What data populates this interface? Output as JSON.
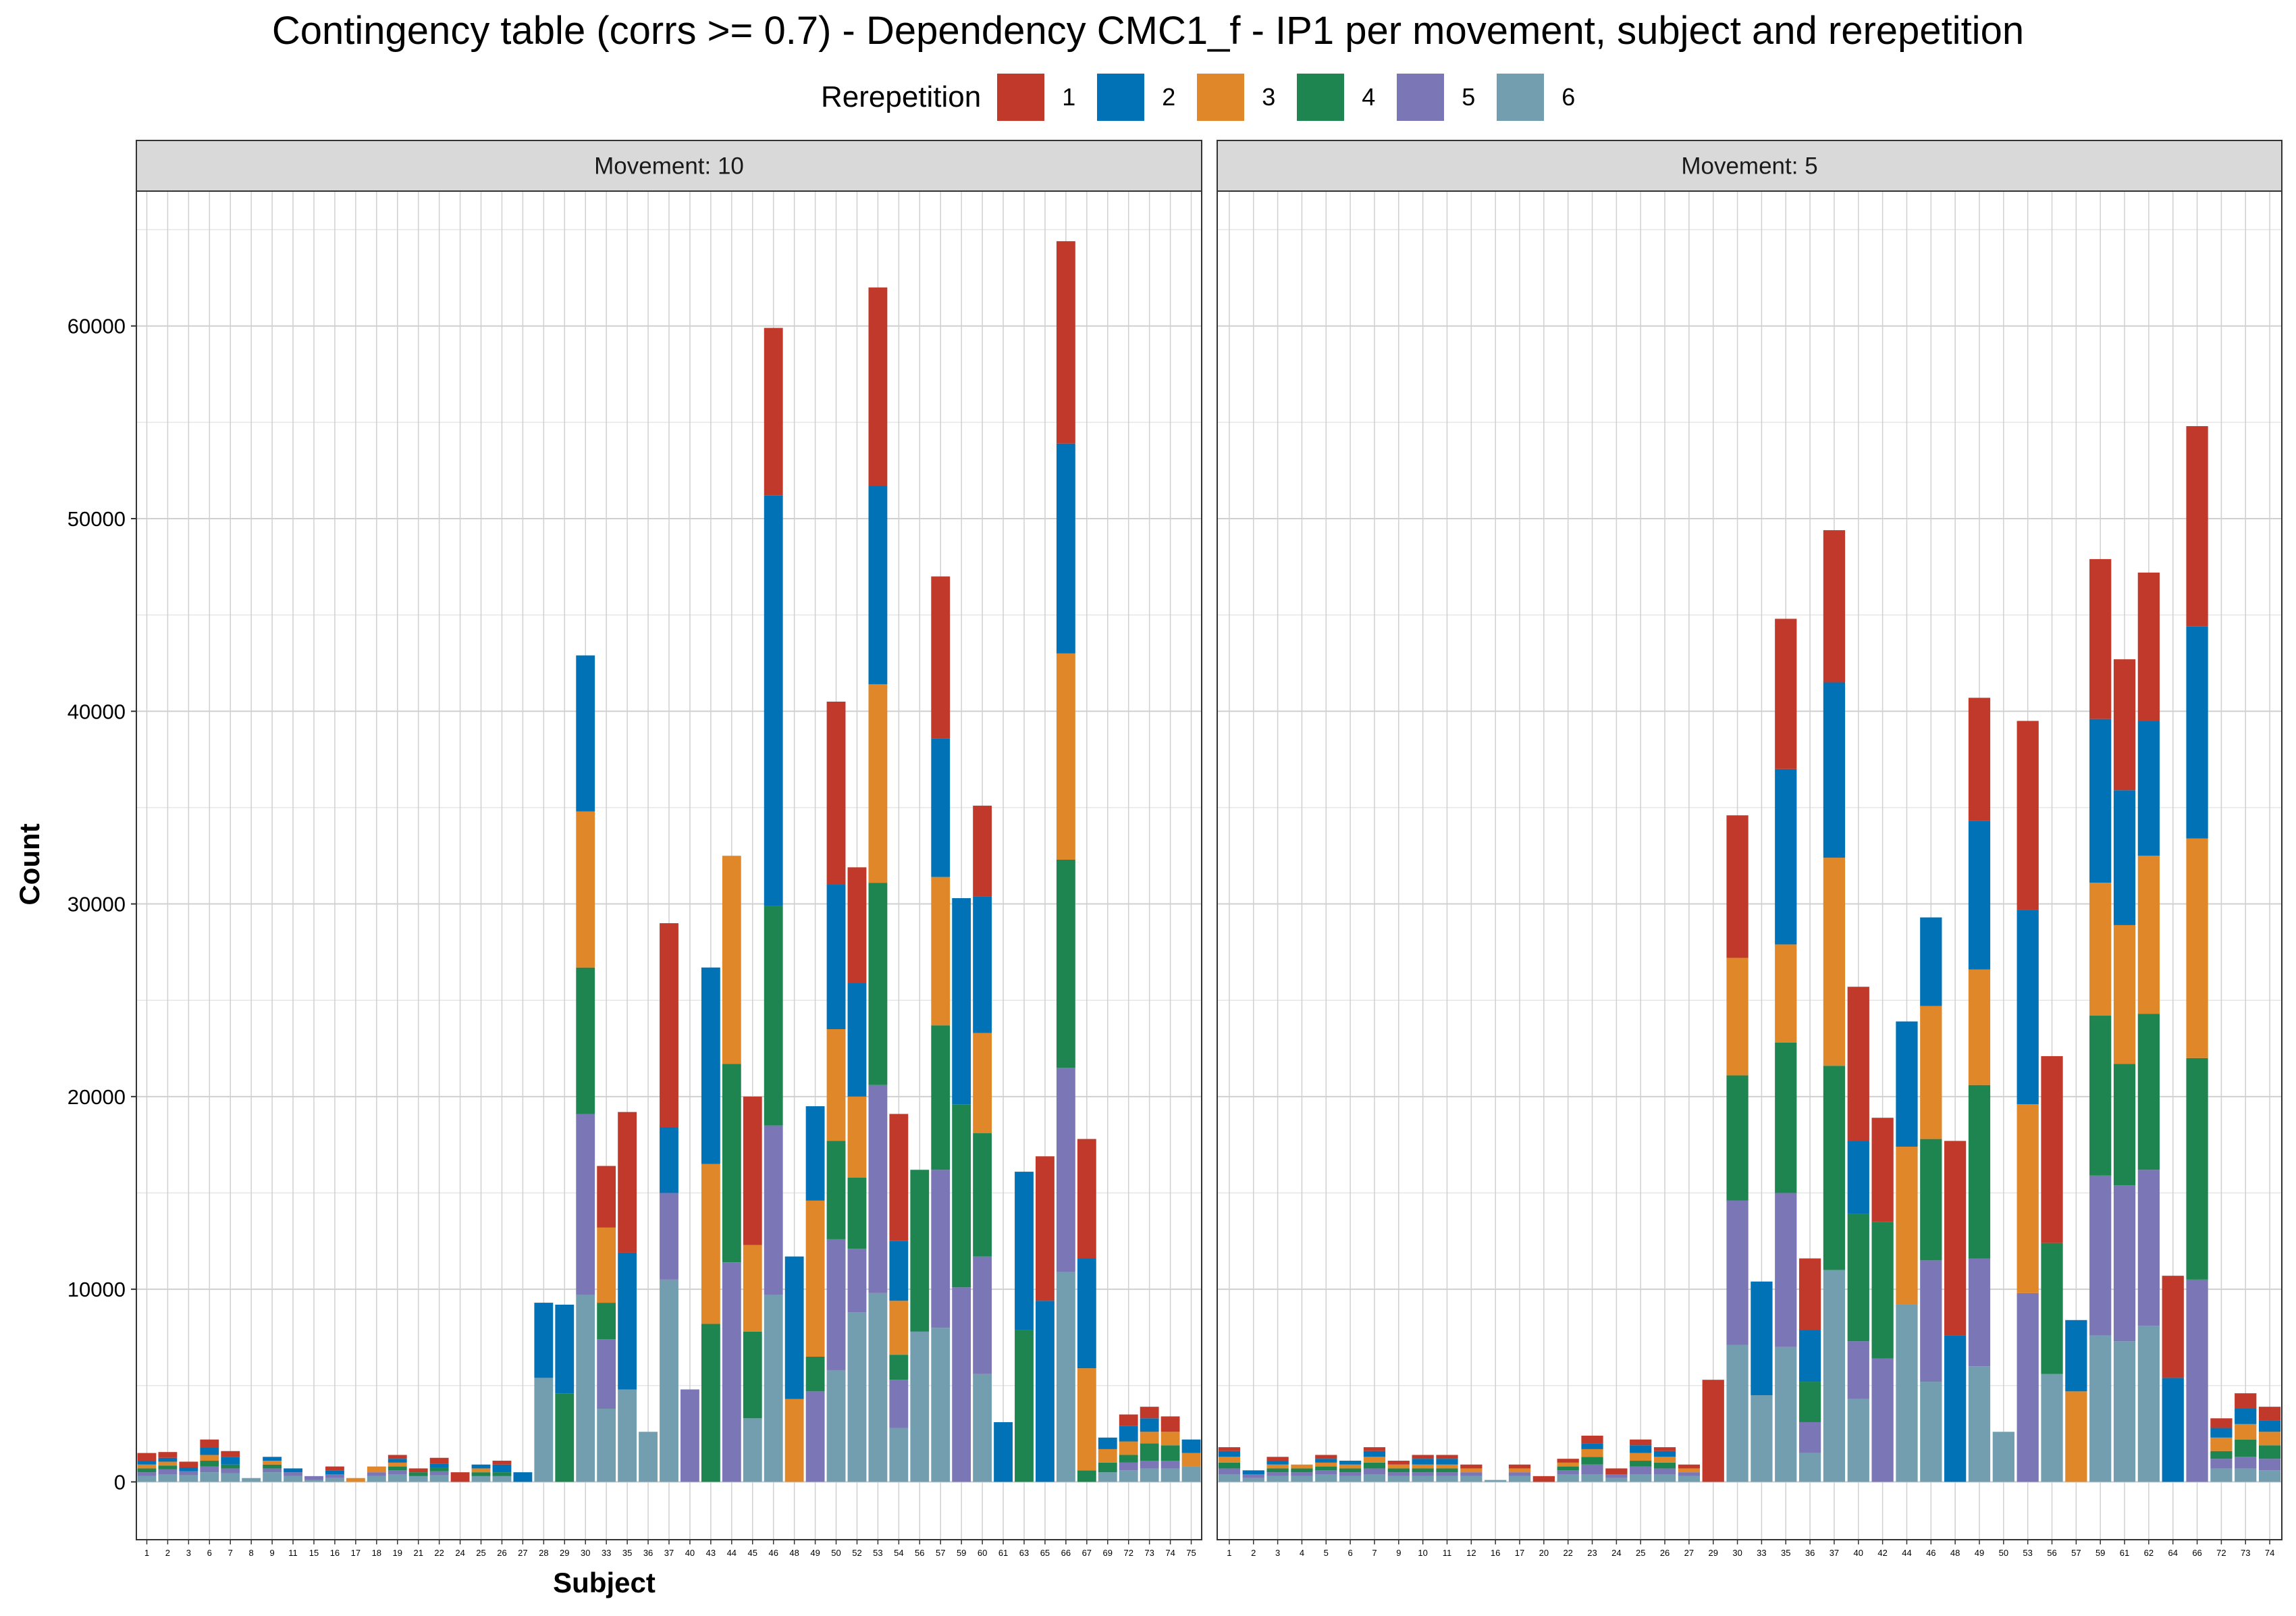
{
  "colors": {
    "1": "#C0392B",
    "2": "#0072B5",
    "3": "#E0872A",
    "4": "#1E8551",
    "5": "#7B76B5",
    "6": "#739EAF",
    "strip_fill": "#D9D9D9",
    "grid": "#D0D0D0"
  },
  "chart_data": {
    "type": "bar",
    "stacked": true,
    "title": "Contingency table (corrs >= 0.7) - Dependency CMC1_f - IP1 per movement, subject and rerepetition",
    "xlabel": "Subject",
    "ylabel": "Count",
    "ylim": [
      -3000,
      67000
    ],
    "yticks": [
      0,
      10000,
      20000,
      30000,
      40000,
      50000,
      60000
    ],
    "ytick_labels": [
      "0",
      "10000",
      "20000",
      "30000",
      "40000",
      "50000",
      "60000"
    ],
    "grid": true,
    "legend": {
      "title": "Rerepetition",
      "position": "top",
      "entries": [
        "1",
        "2",
        "3",
        "4",
        "5",
        "6"
      ]
    },
    "stack_order_bottom_to_top": [
      "6",
      "5",
      "4",
      "3",
      "2",
      "1"
    ],
    "facets": [
      {
        "label": "Movement: 10",
        "categories": [
          "1",
          "2",
          "3",
          "6",
          "7",
          "8",
          "9",
          "11",
          "15",
          "16",
          "17",
          "18",
          "19",
          "21",
          "22",
          "24",
          "25",
          "26",
          "27",
          "28",
          "29",
          "30",
          "33",
          "35",
          "36",
          "37",
          "40",
          "43",
          "44",
          "45",
          "46",
          "48",
          "49",
          "50",
          "52",
          "53",
          "54",
          "56",
          "57",
          "59",
          "60",
          "61",
          "63",
          "65",
          "66",
          "67",
          "69",
          "72",
          "73",
          "74",
          "75"
        ],
        "series": [
          {
            "name": "6",
            "values": [
              300,
              400,
              350,
              500,
              450,
              200,
              500,
              300,
              100,
              200,
              0,
              300,
              400,
              300,
              350,
              0,
              300,
              300,
              0,
              5400,
              0,
              9700,
              3800,
              4800,
              2600,
              10500,
              0,
              0,
              0,
              3300,
              9700,
              0,
              0,
              5800,
              8800,
              9800,
              2800,
              7800,
              8000,
              0,
              5600,
              0,
              0,
              0,
              10900,
              0,
              500,
              600,
              700,
              700,
              800
            ]
          },
          {
            "name": "5",
            "values": [
              200,
              250,
              200,
              300,
              250,
              0,
              200,
              200,
              200,
              200,
              0,
              200,
              200,
              0,
              200,
              0,
              0,
              0,
              0,
              0,
              0,
              9400,
              3600,
              0,
              0,
              4500,
              4800,
              0,
              11400,
              0,
              8800,
              0,
              4700,
              6800,
              3300,
              10800,
              2500,
              0,
              8200,
              10100,
              6100,
              0,
              0,
              0,
              10600,
              0,
              0,
              400,
              400,
              400,
              0
            ]
          },
          {
            "name": "4",
            "values": [
              200,
              200,
              0,
              300,
              200,
              0,
              200,
              0,
              0,
              0,
              0,
              0,
              200,
              200,
              200,
              0,
              200,
              200,
              0,
              0,
              4600,
              7600,
              1900,
              0,
              0,
              0,
              0,
              8200,
              10300,
              4500,
              11400,
              0,
              1800,
              5100,
              3700,
              10500,
              1300,
              8400,
              7500,
              9500,
              6400,
              0,
              7900,
              0,
              10800,
              600,
              500,
              400,
              900,
              800,
              0
            ]
          },
          {
            "name": "3",
            "values": [
              200,
              200,
              0,
              300,
              0,
              0,
              200,
              0,
              0,
              0,
              200,
              300,
              200,
              0,
              0,
              0,
              200,
              0,
              0,
              0,
              0,
              8100,
              3900,
              0,
              0,
              0,
              0,
              8300,
              10800,
              4500,
              0,
              4300,
              8100,
              5800,
              4200,
              10300,
              2800,
              0,
              7700,
              0,
              5200,
              0,
              0,
              0,
              10700,
              5300,
              700,
              700,
              600,
              700,
              700
            ]
          },
          {
            "name": "2",
            "values": [
              200,
              200,
              200,
              400,
              400,
              0,
              200,
              200,
              0,
              200,
              0,
              0,
              200,
              0,
              200,
              0,
              200,
              400,
              500,
              3900,
              4600,
              8100,
              0,
              7100,
              0,
              3400,
              0,
              10200,
              0,
              0,
              21300,
              7400,
              4900,
              7500,
              5900,
              10300,
              3100,
              0,
              7200,
              10700,
              7100,
              3100,
              8200,
              9400,
              10900,
              5700,
              600,
              800,
              700,
              0,
              700
            ]
          },
          {
            "name": "1",
            "values": [
              400,
              300,
              300,
              400,
              300,
              0,
              0,
              0,
              0,
              200,
              0,
              0,
              200,
              200,
              300,
              500,
              0,
              200,
              0,
              0,
              0,
              0,
              3200,
              7300,
              0,
              10600,
              0,
              0,
              0,
              7700,
              8700,
              0,
              0,
              9500,
              6000,
              10300,
              6600,
              0,
              8400,
              0,
              4700,
              0,
              0,
              7500,
              10500,
              6200,
              0,
              600,
              600,
              800,
              0
            ]
          }
        ]
      },
      {
        "label": "Movement: 5",
        "categories": [
          "1",
          "2",
          "3",
          "4",
          "5",
          "6",
          "7",
          "9",
          "10",
          "11",
          "12",
          "16",
          "17",
          "20",
          "22",
          "23",
          "24",
          "25",
          "26",
          "27",
          "29",
          "30",
          "33",
          "35",
          "36",
          "37",
          "40",
          "42",
          "44",
          "46",
          "48",
          "49",
          "50",
          "53",
          "56",
          "57",
          "59",
          "61",
          "62",
          "64",
          "66",
          "72",
          "73",
          "74"
        ],
        "series": [
          {
            "name": "6",
            "values": [
              400,
              200,
              300,
              300,
              400,
              300,
              400,
              300,
              300,
              300,
              300,
              100,
              300,
              0,
              400,
              400,
              200,
              400,
              400,
              300,
              0,
              7100,
              4500,
              7000,
              1500,
              11000,
              4300,
              0,
              9200,
              5200,
              0,
              6000,
              2600,
              0,
              5600,
              0,
              7600,
              7300,
              8100,
              0,
              0,
              700,
              700,
              600
            ]
          },
          {
            "name": "5",
            "values": [
              300,
              200,
              200,
              200,
              200,
              200,
              300,
              200,
              200,
              200,
              200,
              0,
              200,
              0,
              200,
              500,
              200,
              400,
              300,
              200,
              0,
              7500,
              0,
              8000,
              1600,
              0,
              3000,
              6400,
              0,
              6300,
              0,
              5600,
              0,
              9800,
              0,
              0,
              8300,
              8100,
              8100,
              0,
              10500,
              500,
              600,
              600
            ]
          },
          {
            "name": "4",
            "values": [
              300,
              0,
              200,
              200,
              200,
              200,
              300,
              200,
              200,
              200,
              0,
              0,
              0,
              0,
              200,
              400,
              0,
              300,
              300,
              0,
              0,
              6500,
              0,
              7800,
              2100,
              10600,
              6600,
              7100,
              0,
              6300,
              0,
              9000,
              0,
              0,
              6800,
              0,
              8300,
              6300,
              8100,
              0,
              11500,
              400,
              900,
              700
            ]
          },
          {
            "name": "3",
            "values": [
              300,
              0,
              200,
              200,
              200,
              200,
              300,
              200,
              200,
              200,
              200,
              0,
              200,
              0,
              200,
              400,
              0,
              400,
              300,
              200,
              0,
              6100,
              0,
              5100,
              0,
              10800,
              0,
              0,
              8200,
              6900,
              0,
              6000,
              0,
              9800,
              0,
              4700,
              6900,
              7200,
              8200,
              0,
              11400,
              700,
              800,
              700
            ]
          },
          {
            "name": "2",
            "values": [
              300,
              200,
              200,
              0,
              200,
              200,
              300,
              0,
              300,
              300,
              0,
              0,
              0,
              0,
              0,
              300,
              0,
              400,
              300,
              0,
              0,
              0,
              5900,
              9100,
              2700,
              9100,
              3800,
              0,
              6500,
              4600,
              7600,
              7700,
              0,
              10100,
              0,
              3700,
              8500,
              7000,
              7000,
              5400,
              11000,
              500,
              800,
              600
            ]
          },
          {
            "name": "1",
            "values": [
              200,
              0,
              200,
              0,
              200,
              0,
              200,
              200,
              200,
              200,
              200,
              0,
              200,
              300,
              200,
              400,
              300,
              300,
              200,
              200,
              5300,
              7400,
              0,
              7800,
              3700,
              7900,
              8000,
              5400,
              0,
              0,
              10100,
              6400,
              0,
              9800,
              9700,
              0,
              8300,
              6800,
              7700,
              5300,
              10400,
              500,
              800,
              700
            ]
          }
        ]
      }
    ]
  }
}
